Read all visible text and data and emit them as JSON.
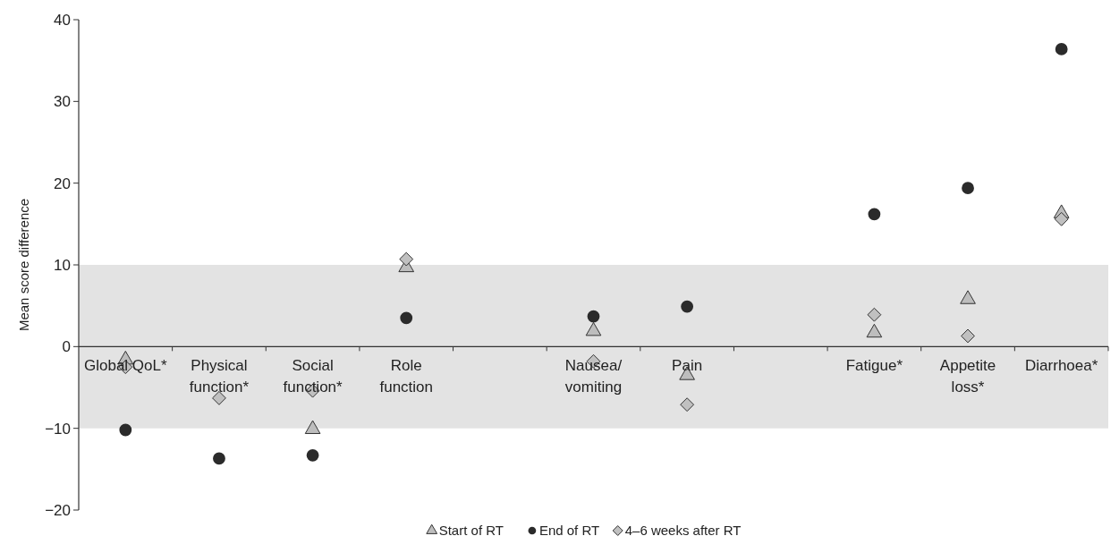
{
  "chart_data": {
    "type": "scatter",
    "ylabel": "Mean score difference",
    "categories": [
      "Global QoL*",
      "Physical function*",
      "Social function*",
      "Role function",
      null,
      "Nausea/vomiting",
      "Pain",
      null,
      "Fatigue*",
      "Appetite loss*",
      "Diarrhoea*"
    ],
    "series": [
      {
        "name": "Start of RT",
        "color": "#bdbdbd",
        "marker": "triangle",
        "values": [
          -1.5,
          null,
          -10,
          9.8,
          null,
          2,
          -3.4,
          null,
          1.8,
          5.9,
          16.4
        ]
      },
      {
        "name": "End of RT",
        "color": "#2b2b2b",
        "marker": "circle",
        "values": [
          -10.2,
          -13.7,
          -13.3,
          3.5,
          null,
          3.7,
          4.9,
          null,
          16.2,
          19.4,
          36.4
        ]
      },
      {
        "name": "4–6 weeks after RT",
        "color": "#c0c0c0",
        "marker": "diamond",
        "values": [
          -2.5,
          -6.3,
          -5.4,
          10.7,
          null,
          -1.8,
          -7.1,
          null,
          3.9,
          1.3,
          15.6
        ]
      }
    ],
    "ylim": [
      -20,
      40
    ],
    "yticks": [
      -20,
      -10,
      0,
      10,
      20,
      30,
      40
    ],
    "bands": [
      {
        "axis": "y",
        "from": -10,
        "to": 10,
        "color": "#e3e3e3"
      }
    ],
    "grid": false,
    "legend": "bottom"
  }
}
